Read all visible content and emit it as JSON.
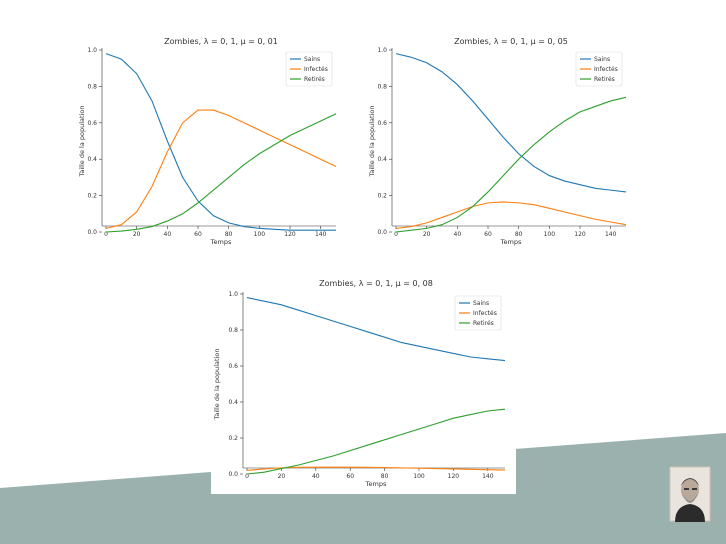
{
  "colors": {
    "band": "#9bb1ae",
    "sains": "#1f77b4",
    "infectes": "#ff7f0e",
    "retires": "#2ca02c"
  },
  "chart_data": [
    {
      "type": "line",
      "title": "Zombies, λ = 0, 1, μ = 0, 01",
      "xlabel": "Temps",
      "ylabel": "Taille de la population",
      "xlim": [
        0,
        150
      ],
      "ylim": [
        0,
        1.0
      ],
      "xticks": [
        0,
        20,
        40,
        60,
        80,
        100,
        120,
        140
      ],
      "yticks": [
        0.0,
        0.2,
        0.4,
        0.6,
        0.8,
        1.0
      ],
      "ytick_labels": [
        "0.0",
        "0.2",
        "0.4",
        "0.6",
        "0.8",
        "1.0"
      ],
      "legend": "top-right",
      "x": [
        0,
        10,
        20,
        30,
        40,
        50,
        60,
        70,
        80,
        90,
        100,
        110,
        120,
        130,
        140,
        150
      ],
      "series": [
        {
          "name": "Sains",
          "color_key": "sains",
          "values": [
            0.98,
            0.95,
            0.87,
            0.72,
            0.5,
            0.3,
            0.17,
            0.09,
            0.05,
            0.03,
            0.02,
            0.015,
            0.01,
            0.01,
            0.01,
            0.01
          ]
        },
        {
          "name": "Infectés",
          "color_key": "infectes",
          "values": [
            0.02,
            0.04,
            0.11,
            0.25,
            0.44,
            0.6,
            0.67,
            0.67,
            0.64,
            0.6,
            0.56,
            0.52,
            0.48,
            0.44,
            0.4,
            0.36
          ]
        },
        {
          "name": "Retirés",
          "color_key": "retires",
          "values": [
            0.0,
            0.005,
            0.015,
            0.03,
            0.06,
            0.1,
            0.16,
            0.23,
            0.3,
            0.37,
            0.43,
            0.48,
            0.53,
            0.57,
            0.61,
            0.65
          ]
        }
      ]
    },
    {
      "type": "line",
      "title": "Zombies, λ = 0, 1, μ = 0, 05",
      "xlabel": "Temps",
      "ylabel": "Taille de la population",
      "xlim": [
        0,
        150
      ],
      "ylim": [
        0,
        1.0
      ],
      "xticks": [
        0,
        20,
        40,
        60,
        80,
        100,
        120,
        140
      ],
      "yticks": [
        0.0,
        0.2,
        0.4,
        0.6,
        0.8,
        1.0
      ],
      "ytick_labels": [
        "0.0",
        "0.2",
        "0.4",
        "0.6",
        "0.8",
        "1.0"
      ],
      "legend": "top-right",
      "x": [
        0,
        10,
        20,
        30,
        40,
        50,
        60,
        70,
        80,
        90,
        100,
        110,
        120,
        130,
        140,
        150
      ],
      "series": [
        {
          "name": "Sains",
          "color_key": "sains",
          "values": [
            0.98,
            0.96,
            0.93,
            0.88,
            0.81,
            0.72,
            0.62,
            0.52,
            0.43,
            0.36,
            0.31,
            0.28,
            0.26,
            0.24,
            0.23,
            0.22
          ]
        },
        {
          "name": "Infectés",
          "color_key": "infectes",
          "values": [
            0.02,
            0.03,
            0.05,
            0.08,
            0.11,
            0.14,
            0.16,
            0.165,
            0.16,
            0.15,
            0.13,
            0.11,
            0.09,
            0.07,
            0.055,
            0.04
          ]
        },
        {
          "name": "Retirés",
          "color_key": "retires",
          "values": [
            0.0,
            0.01,
            0.02,
            0.04,
            0.08,
            0.14,
            0.22,
            0.31,
            0.4,
            0.48,
            0.55,
            0.61,
            0.66,
            0.69,
            0.72,
            0.74
          ]
        }
      ]
    },
    {
      "type": "line",
      "title": "Zombies, λ = 0, 1, μ = 0, 08",
      "xlabel": "Temps",
      "ylabel": "Taille de la population",
      "xlim": [
        0,
        150
      ],
      "ylim": [
        0,
        1.0
      ],
      "xticks": [
        0,
        20,
        40,
        60,
        80,
        100,
        120,
        140
      ],
      "yticks": [
        0.0,
        0.2,
        0.4,
        0.6,
        0.8,
        1.0
      ],
      "ytick_labels": [
        "0.0",
        "0.2",
        "0.4",
        "0.6",
        "0.8",
        "1.0"
      ],
      "legend": "top-right",
      "x": [
        0,
        10,
        20,
        30,
        40,
        50,
        60,
        70,
        80,
        90,
        100,
        110,
        120,
        130,
        140,
        150
      ],
      "series": [
        {
          "name": "Sains",
          "color_key": "sains",
          "values": [
            0.98,
            0.96,
            0.94,
            0.91,
            0.88,
            0.85,
            0.82,
            0.79,
            0.76,
            0.73,
            0.71,
            0.69,
            0.67,
            0.65,
            0.64,
            0.63
          ]
        },
        {
          "name": "Infectés",
          "color_key": "infectes",
          "values": [
            0.02,
            0.028,
            0.034,
            0.037,
            0.038,
            0.038,
            0.038,
            0.037,
            0.036,
            0.034,
            0.032,
            0.03,
            0.028,
            0.026,
            0.024,
            0.022
          ]
        },
        {
          "name": "Retirés",
          "color_key": "retires",
          "values": [
            0.0,
            0.01,
            0.03,
            0.05,
            0.075,
            0.1,
            0.13,
            0.16,
            0.19,
            0.22,
            0.25,
            0.28,
            0.31,
            0.33,
            0.35,
            0.36
          ]
        }
      ]
    }
  ]
}
